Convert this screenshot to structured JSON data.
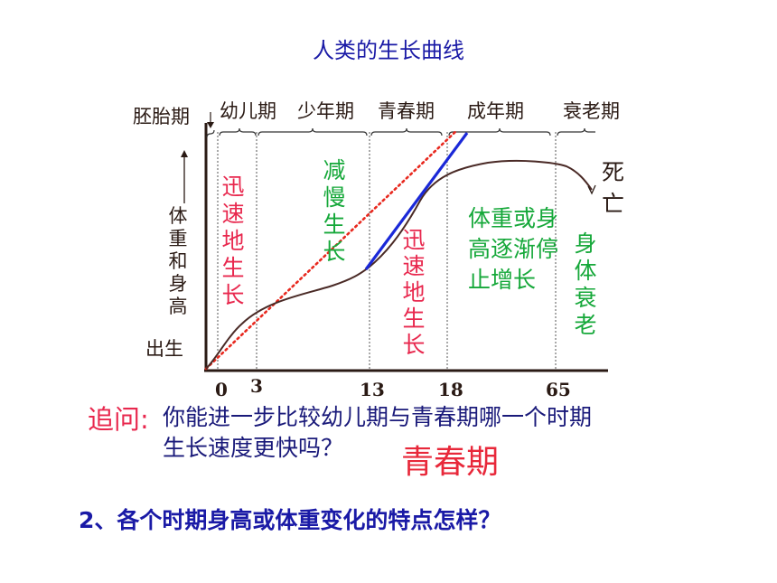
{
  "title": "人类的生长曲线",
  "chart_data": {
    "type": "line",
    "title": "人类的生长曲线",
    "ylabel": "体重和身高",
    "origin_label": "出生",
    "x_ticks": [
      "0",
      "3",
      "13",
      "18",
      "65"
    ],
    "periods": [
      {
        "name": "胚胎期",
        "from": null,
        "to": 0
      },
      {
        "name": "幼儿期",
        "from": 0,
        "to": 3
      },
      {
        "name": "少年期",
        "from": 3,
        "to": 13
      },
      {
        "name": "青春期",
        "from": 13,
        "to": 18
      },
      {
        "name": "成年期",
        "from": 18,
        "to": 65
      },
      {
        "name": "衰老期",
        "from": 65,
        "to": null
      }
    ],
    "phase_annotations": [
      {
        "text": "迅速地生长",
        "period": "幼儿期",
        "color": "#e8284e"
      },
      {
        "text": "减慢生长",
        "period": "少年期",
        "color": "#16a83a"
      },
      {
        "text": "迅速地生长",
        "period": "青春期",
        "color": "#e8284e"
      },
      {
        "text": "体重或身高逐渐停止增长",
        "period": "成年期",
        "color": "#16a83a"
      },
      {
        "text": "身体衰老",
        "period": "衰老期",
        "color": "#16a83a"
      }
    ],
    "end_label": "死亡",
    "series": [
      {
        "role": "growth-curve",
        "color": "#4a2a26"
      },
      {
        "role": "uniform-growth-reference",
        "color": "#e8281e",
        "style": "dotted"
      },
      {
        "role": "adolescent-growth-tangent",
        "color": "#1a28d8"
      }
    ],
    "colors": {
      "axis": "#2a1a14",
      "curve": "#4a2a26",
      "reference": "#e8281e",
      "tangent": "#1a28d8"
    }
  },
  "followup": {
    "label": "追问:",
    "question_line1": "你能进一步比较幼儿期与青春期哪一个时期",
    "question_line2": "生长速度更快吗？",
    "answer": "青春期"
  },
  "question2": "2、各个时期身高或体重变化的特点怎样？"
}
